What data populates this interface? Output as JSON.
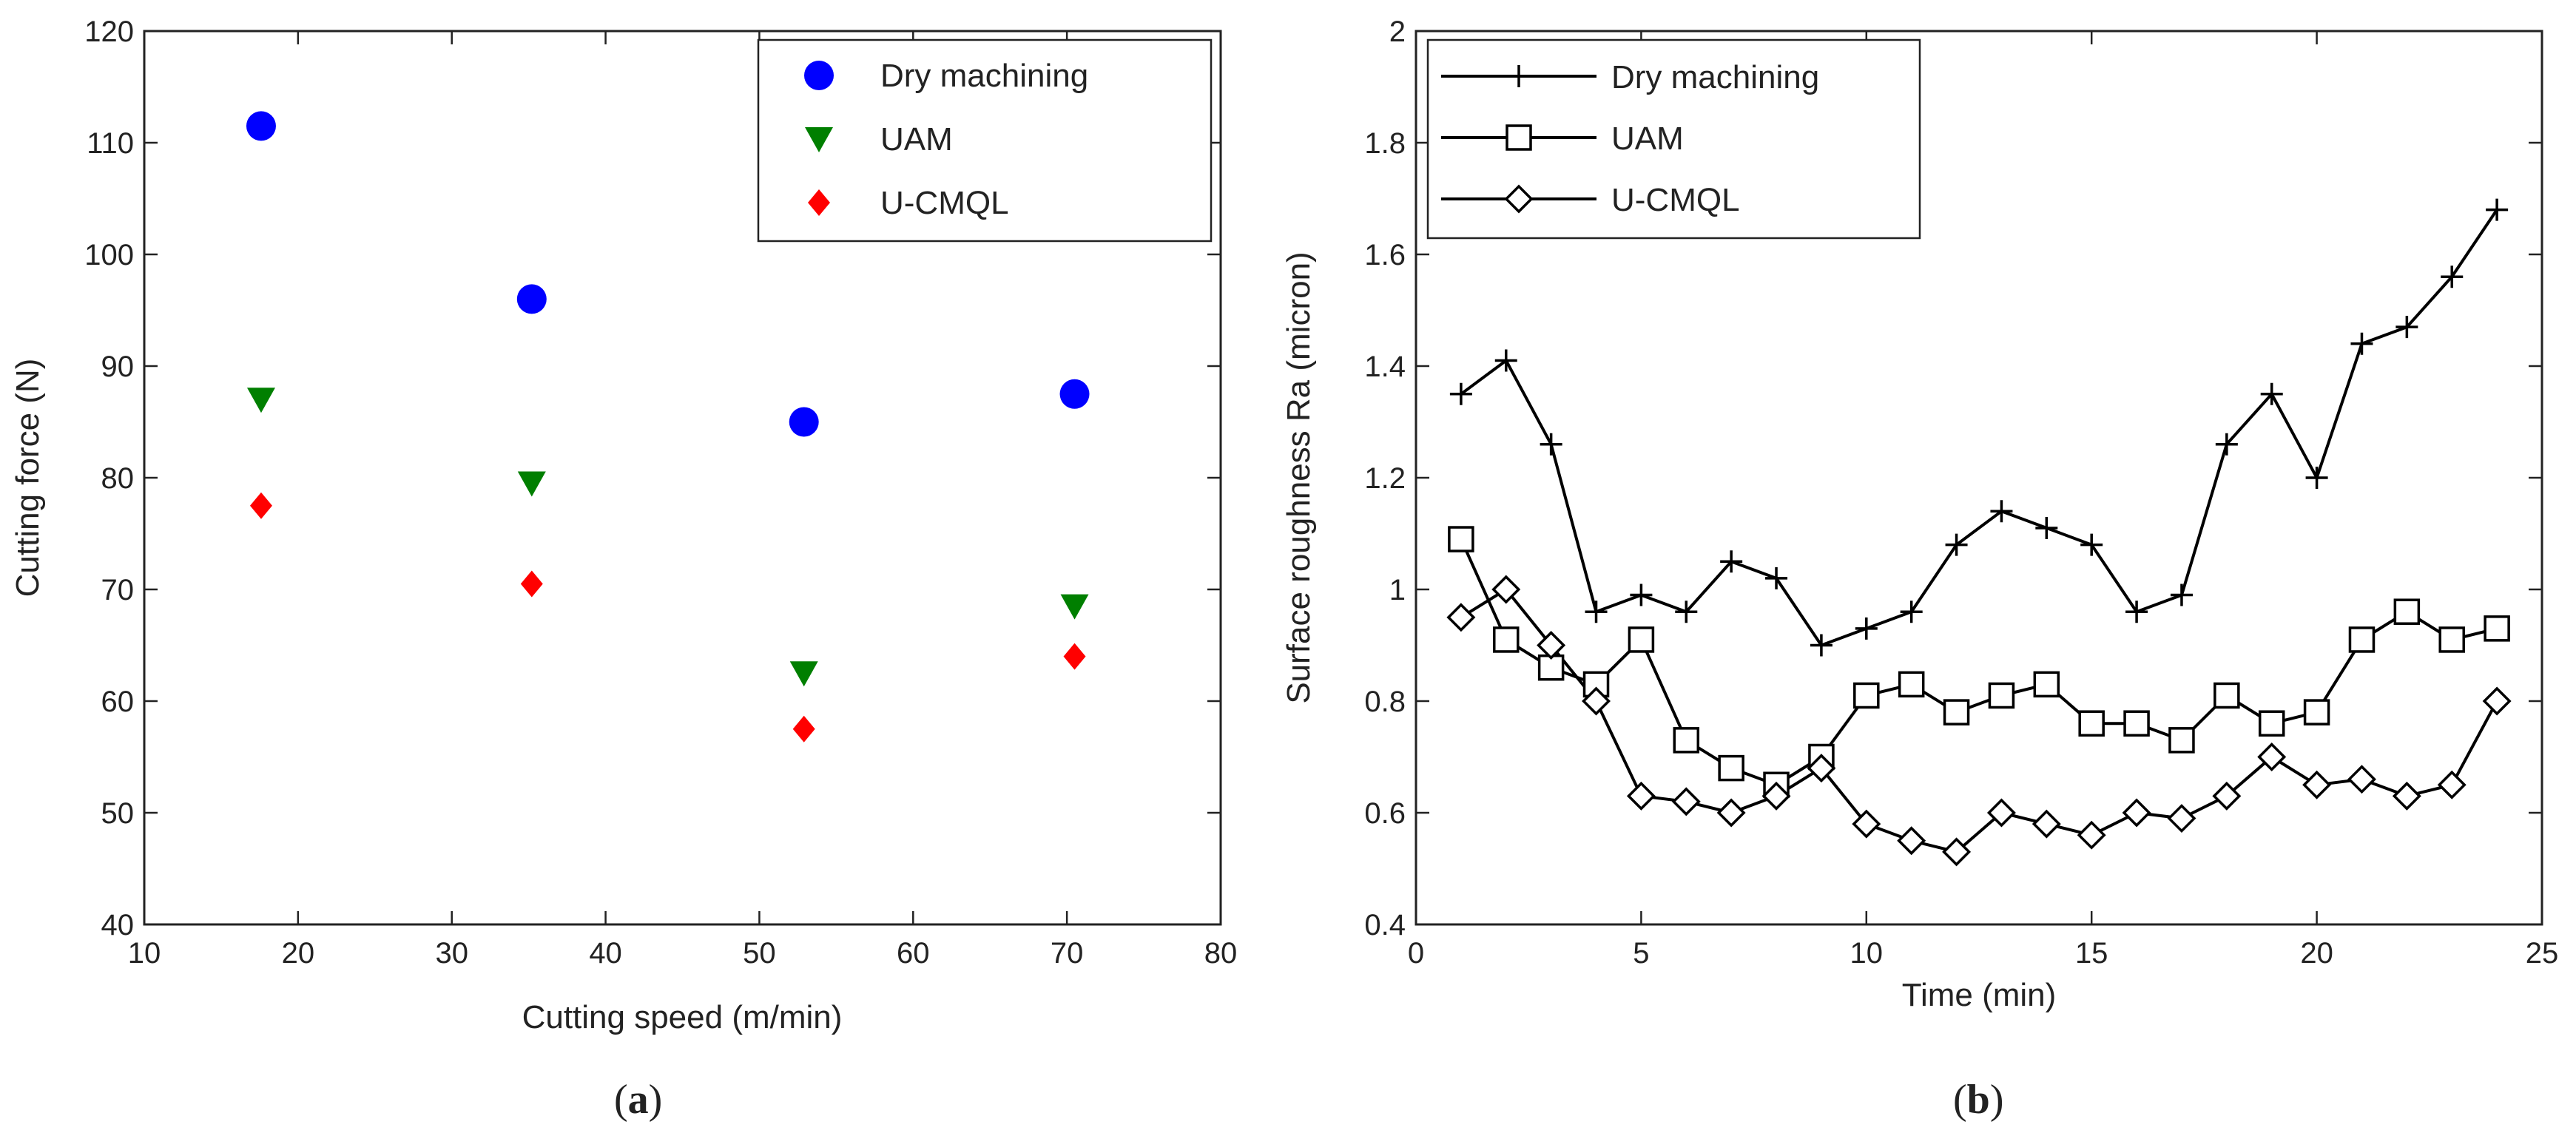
{
  "chart_data": [
    {
      "type": "scatter",
      "caption": "(a)",
      "caption_letter": "a",
      "title": "",
      "xlabel": "Cutting speed (m/min)",
      "ylabel": "Cutting force (N)",
      "xlim": [
        10,
        80
      ],
      "ylim": [
        40,
        120
      ],
      "xticks": [
        "10",
        "20",
        "30",
        "40",
        "50",
        "60",
        "70",
        "80"
      ],
      "yticks": [
        "40",
        "50",
        "60",
        "70",
        "80",
        "90",
        "100",
        "110",
        "120"
      ],
      "grid": false,
      "legend_position": "top-right",
      "series": [
        {
          "name": "Dry machining",
          "marker": "circle",
          "color": "#0000ff",
          "x": [
            17.6,
            35.2,
            52.9,
            70.5
          ],
          "y": [
            111.5,
            96,
            85,
            87.5
          ]
        },
        {
          "name": "UAM",
          "marker": "triangle-down",
          "color": "#007f00",
          "x": [
            17.6,
            35.2,
            52.9,
            70.5
          ],
          "y": [
            87,
            79.5,
            62.5,
            68.5
          ]
        },
        {
          "name": "U-CMQL",
          "marker": "diamond",
          "color": "#ff0000",
          "x": [
            17.6,
            35.2,
            52.9,
            70.5
          ],
          "y": [
            77.5,
            70.5,
            57.5,
            64
          ]
        }
      ]
    },
    {
      "type": "line",
      "caption": "(b)",
      "caption_letter": "b",
      "title": "",
      "xlabel": "Time (min)",
      "ylabel": "Surface roughness Ra (micron)",
      "xlim": [
        0,
        25
      ],
      "ylim": [
        0.4,
        2
      ],
      "xticks": [
        "0",
        "5",
        "10",
        "15",
        "20",
        "25"
      ],
      "yticks": [
        "0.4",
        "0.6",
        "0.8",
        "1",
        "1.2",
        "1.4",
        "1.6",
        "1.8",
        "2"
      ],
      "grid": false,
      "legend_position": "top-left",
      "x": [
        1,
        2,
        3,
        4,
        5,
        6,
        7,
        8,
        9,
        10,
        11,
        12,
        13,
        14,
        15,
        16,
        17,
        18,
        19,
        20,
        21,
        22,
        23,
        24
      ],
      "series": [
        {
          "name": "Dry machining",
          "marker": "plus",
          "color": "#000000",
          "values": [
            1.35,
            1.41,
            1.26,
            0.96,
            0.99,
            0.96,
            1.05,
            1.02,
            0.9,
            0.93,
            0.96,
            1.08,
            1.14,
            1.11,
            1.08,
            0.96,
            0.99,
            1.26,
            1.35,
            1.2,
            1.44,
            1.47,
            1.56,
            1.68
          ]
        },
        {
          "name": "UAM",
          "marker": "square",
          "color": "#000000",
          "values": [
            1.09,
            0.91,
            0.86,
            0.83,
            0.91,
            0.73,
            0.68,
            0.65,
            0.7,
            0.81,
            0.83,
            0.78,
            0.81,
            0.83,
            0.76,
            0.76,
            0.73,
            0.81,
            0.76,
            0.78,
            0.91,
            0.96,
            0.91,
            0.93
          ]
        },
        {
          "name": "U-CMQL",
          "marker": "diamond-open",
          "color": "#000000",
          "values": [
            0.95,
            1.0,
            0.9,
            0.8,
            0.63,
            0.62,
            0.6,
            0.63,
            0.68,
            0.58,
            0.55,
            0.53,
            0.6,
            0.58,
            0.56,
            0.6,
            0.59,
            0.63,
            0.7,
            0.65,
            0.66,
            0.63,
            0.65,
            0.8
          ]
        }
      ]
    }
  ]
}
